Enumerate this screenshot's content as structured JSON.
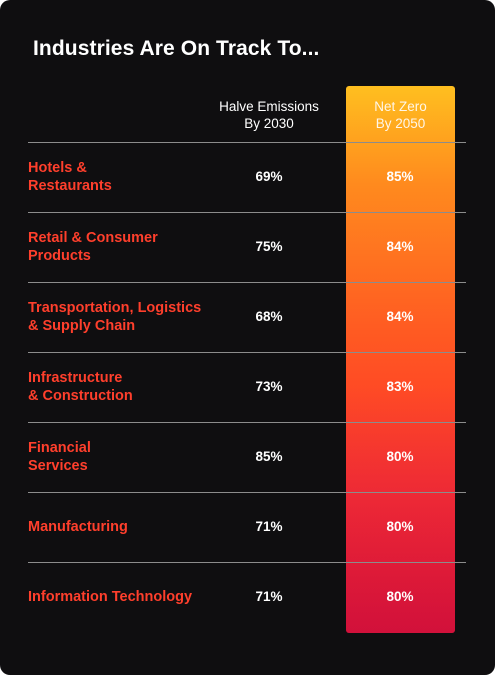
{
  "chart_data": {
    "type": "table",
    "title": "Industries Are On Track To...",
    "columns": [
      {
        "lines": [
          "Halve Emissions",
          "By 2030"
        ]
      },
      {
        "lines": [
          "Net Zero",
          "By 2050"
        ]
      }
    ],
    "rows": [
      {
        "lines": [
          "Hotels &",
          "Restaurants"
        ],
        "halve": "69%",
        "net_zero": "85%"
      },
      {
        "lines": [
          "Retail & Consumer",
          "Products"
        ],
        "halve": "75%",
        "net_zero": "84%"
      },
      {
        "lines": [
          "Transportation, Logistics",
          "& Supply Chain"
        ],
        "halve": "68%",
        "net_zero": "84%"
      },
      {
        "lines": [
          "Infrastructure",
          "& Construction"
        ],
        "halve": "73%",
        "net_zero": "83%"
      },
      {
        "lines": [
          "Financial",
          "Services"
        ],
        "halve": "85%",
        "net_zero": "80%"
      },
      {
        "lines": [
          "Manufacturing"
        ],
        "halve": "71%",
        "net_zero": "80%"
      },
      {
        "lines": [
          "Information Technology"
        ],
        "halve": "71%",
        "net_zero": "80%"
      }
    ],
    "colors": {
      "background": "#0f0e10",
      "label": "#ff3f2c",
      "highlight_top": "#ffbf1f",
      "highlight_bottom": "#f70f1a"
    }
  }
}
